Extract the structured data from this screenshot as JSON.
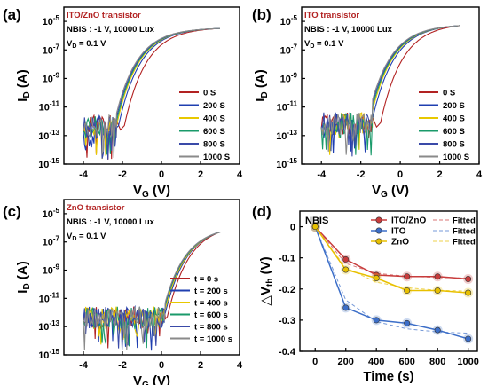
{
  "colors": {
    "s0": "#b22222",
    "s200": "#1f3fb0",
    "s400": "#e8c800",
    "s600": "#1a9a6a",
    "s800": "#3a4aa8",
    "s1000": "#8a8a8a",
    "ito_zno": "#c83c3c",
    "ito": "#3c6ec8",
    "zno": "#e8c000",
    "title_red": "#b22222"
  },
  "chart_data": [
    {
      "type": "line",
      "panel_label": "(a)",
      "title": "ITO/ZnO transistor",
      "condition": "NBIS : -1 V, 10000 Lux",
      "vd": "V",
      "vd_sub": "D",
      "vd_value": " = 0.1 V",
      "xlabel": "V",
      "xlabel_sub": "G",
      "xlabel_unit": " (V)",
      "ylabel": "I",
      "ylabel_sub": "D",
      "ylabel_unit": " (A)",
      "xlim": [
        -5,
        4
      ],
      "ylim_exp": [
        -15,
        -4
      ],
      "xticks": [
        -4,
        -2,
        0,
        2,
        4
      ],
      "yticks_exp": [
        -15,
        -13,
        -11,
        -9,
        -7,
        -5
      ],
      "ytick_base": "10",
      "xticklabels": [
        "-4",
        "-2",
        "0",
        "2",
        "4"
      ],
      "yticklabels": [
        "-15",
        "-13",
        "-11",
        "-9",
        "-7",
        "-5"
      ],
      "legend_position": "center-right",
      "series": [
        {
          "name": "0 S",
          "color_key": "s0",
          "von": -1.9
        },
        {
          "name": "200 S",
          "color_key": "s200",
          "von": -2.2
        },
        {
          "name": "400 S",
          "color_key": "s400",
          "von": -2.3
        },
        {
          "name": "600 S",
          "color_key": "s600",
          "von": -2.35
        },
        {
          "name": "800 S",
          "color_key": "s800",
          "von": -2.4
        },
        {
          "name": "1000 S",
          "color_key": "s1000",
          "von": -2.45
        }
      ],
      "on_current_exp_at_3V": -5.5,
      "noise_x_range": [
        -4.0,
        -2.3
      ],
      "noise_center_exp": -12.3
    },
    {
      "type": "line",
      "panel_label": "(b)",
      "title": "ITO transistor",
      "condition": "NBIS : -1 V, 10000 Lux",
      "vd": "V",
      "vd_sub": "D",
      "vd_value": " = 0.1 V",
      "xlabel": "V",
      "xlabel_sub": "G",
      "xlabel_unit": " (V)",
      "ylabel": "I",
      "ylabel_sub": "D",
      "ylabel_unit": " (A)",
      "xlim": [
        -5,
        4
      ],
      "ylim_exp": [
        -15,
        -4
      ],
      "xticks": [
        -4,
        -2,
        0,
        2,
        4
      ],
      "yticks_exp": [
        -15,
        -13,
        -11,
        -9,
        -7,
        -5
      ],
      "ytick_base": "10",
      "xticklabels": [
        "-4",
        "-2",
        "0",
        "2",
        "4"
      ],
      "yticklabels": [
        "-15",
        "-13",
        "-11",
        "-9",
        "-7",
        "-5"
      ],
      "legend_position": "center-right",
      "series": [
        {
          "name": "0 S",
          "color_key": "s0",
          "von": -1.0
        },
        {
          "name": "200 S",
          "color_key": "s200",
          "von": -1.45
        },
        {
          "name": "400 S",
          "color_key": "s400",
          "von": -1.55
        },
        {
          "name": "600 S",
          "color_key": "s600",
          "von": -1.6
        },
        {
          "name": "800 S",
          "color_key": "s800",
          "von": -1.65
        },
        {
          "name": "1000 S",
          "color_key": "s1000",
          "von": -1.7
        }
      ],
      "on_current_exp_at_3V": -5.3,
      "noise_x_range": [
        -4.0,
        -1.4
      ],
      "noise_center_exp": -12.1
    },
    {
      "type": "line",
      "panel_label": "(c)",
      "title": "ZnO transistor",
      "condition": "NBIS : -1 V, 10000 Lux",
      "vd": "V",
      "vd_sub": "D",
      "vd_value": " = 0.1 V",
      "xlabel": "V",
      "xlabel_sub": "G",
      "xlabel_unit": " (V)",
      "ylabel": "I",
      "ylabel_sub": "D",
      "ylabel_unit": " (A)",
      "xlim": [
        -5,
        4
      ],
      "ylim_exp": [
        -15,
        -4
      ],
      "xticks": [
        -4,
        -2,
        0,
        2,
        4
      ],
      "yticks_exp": [
        -15,
        -13,
        -11,
        -9,
        -7,
        -5
      ],
      "ytick_base": "10",
      "xticklabels": [
        "-4",
        "-2",
        "0",
        "2",
        "4"
      ],
      "yticklabels": [
        "-15",
        "-13",
        "-11",
        "-9",
        "-7",
        "-5"
      ],
      "legend_position": "bottom-right",
      "series": [
        {
          "name": "t = 0 s",
          "color_key": "s0",
          "von": 0.3
        },
        {
          "name": "t = 200 s",
          "color_key": "s200",
          "von": 0.15
        },
        {
          "name": "t = 400 s",
          "color_key": "s400",
          "von": 0.1
        },
        {
          "name": "t = 600 s",
          "color_key": "s600",
          "von": 0.05
        },
        {
          "name": "t = 800 s",
          "color_key": "s800",
          "von": 0.02
        },
        {
          "name": "t = 1000 s",
          "color_key": "s1000",
          "von": 0.0
        }
      ],
      "on_current_exp_at_3V": -6.3,
      "noise_x_range": [
        -4.0,
        0.2
      ],
      "noise_center_exp": -12.3
    },
    {
      "type": "line",
      "panel_label": "(d)",
      "annotation": "NBIS",
      "xlabel": "Time (s)",
      "ylabel": "△V",
      "ylabel_sub": "th",
      "ylabel_unit": " (V)",
      "xlim": [
        -100,
        1060
      ],
      "ylim": [
        -0.4,
        0.05
      ],
      "xticks": [
        0,
        200,
        400,
        600,
        800,
        1000
      ],
      "yticks": [
        0,
        -0.1,
        -0.2,
        -0.3,
        -0.4
      ],
      "xticklabels": [
        "0",
        "200",
        "400",
        "600",
        "800",
        "1000"
      ],
      "yticklabels": [
        "0",
        "-0.1",
        "-0.2",
        "-0.3",
        "-0.4"
      ],
      "legend_position": "top-right",
      "x": [
        0,
        200,
        400,
        600,
        800,
        1000
      ],
      "series": [
        {
          "name": "ITO/ZnO",
          "color_key": "ito_zno",
          "values": [
            0,
            -0.105,
            -0.155,
            -0.16,
            -0.16,
            -0.168
          ],
          "fitted": [
            0,
            -0.118,
            -0.15,
            -0.159,
            -0.163,
            -0.165
          ]
        },
        {
          "name": "ITO",
          "color_key": "ito",
          "values": [
            0,
            -0.26,
            -0.3,
            -0.31,
            -0.332,
            -0.36
          ],
          "fitted": [
            0,
            -0.235,
            -0.305,
            -0.328,
            -0.338,
            -0.342
          ]
        },
        {
          "name": "ZnO",
          "color_key": "zno",
          "values": [
            0,
            -0.138,
            -0.165,
            -0.205,
            -0.205,
            -0.212
          ],
          "fitted": [
            0,
            -0.132,
            -0.178,
            -0.196,
            -0.204,
            -0.207
          ]
        }
      ],
      "fitted_label": "Fitted"
    }
  ]
}
